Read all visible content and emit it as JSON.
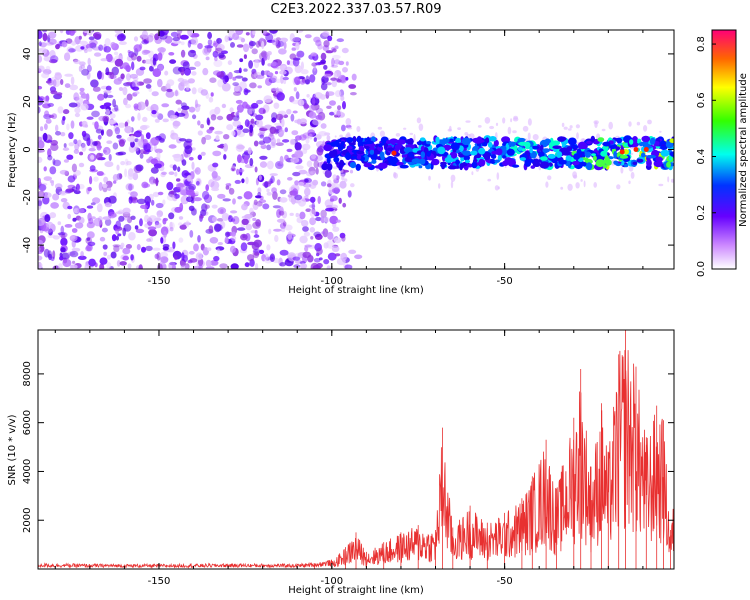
{
  "title": "C2E3.2022.337.03.57.R09",
  "chart_data": [
    {
      "type": "heatmap",
      "xlabel": "Height of straight line (km)",
      "ylabel": "Frequency (Hz)",
      "xlim": [
        -185,
        -1
      ],
      "ylim": [
        -50,
        50
      ],
      "xticks": [
        -150,
        -100,
        -50
      ],
      "yticks": [
        -40,
        -20,
        0,
        20,
        40
      ],
      "colorbar": {
        "label": "Normalized spectral amplitude",
        "range": [
          0,
          0.85
        ],
        "ticks": [
          "0.0",
          "0.2",
          "0.4",
          "0.6",
          "0.8"
        ]
      },
      "description_values": {
        "noise_region_x": [
          -185,
          -100
        ],
        "signal_band_center_hz": -1.5,
        "signal_band_halfwidth_hz": 6,
        "signal_peak_amplitude": 0.82
      }
    },
    {
      "type": "line",
      "xlabel": "Height of straight line (km)",
      "ylabel": "SNR (10 * v/v)",
      "xlim": [
        -185,
        -1
      ],
      "ylim": [
        0,
        9800
      ],
      "xticks": [
        -150,
        -100,
        -50
      ],
      "yticks": [
        2000,
        4000,
        6000,
        8000
      ],
      "series": [
        {
          "color": "#e83030",
          "points": [
            [
              -185,
              180
            ],
            [
              -170,
              160
            ],
            [
              -150,
              150
            ],
            [
              -130,
              170
            ],
            [
              -110,
              160
            ],
            [
              -105,
              200
            ],
            [
              -100,
              300
            ],
            [
              -96,
              900
            ],
            [
              -93,
              1500
            ],
            [
              -90,
              700
            ],
            [
              -85,
              1100
            ],
            [
              -80,
              1500
            ],
            [
              -75,
              1800
            ],
            [
              -70,
              1600
            ],
            [
              -68,
              5800
            ],
            [
              -65,
              1700
            ],
            [
              -60,
              2600
            ],
            [
              -55,
              1900
            ],
            [
              -50,
              2300
            ],
            [
              -45,
              2900
            ],
            [
              -42,
              3800
            ],
            [
              -38,
              5300
            ],
            [
              -35,
              3300
            ],
            [
              -30,
              6200
            ],
            [
              -28,
              8200
            ],
            [
              -25,
              4200
            ],
            [
              -22,
              6800
            ],
            [
              -20,
              4800
            ],
            [
              -17,
              8800
            ],
            [
              -15,
              9800
            ],
            [
              -12,
              8300
            ],
            [
              -9,
              5400
            ],
            [
              -6,
              6700
            ],
            [
              -4,
              6100
            ],
            [
              -2,
              1600
            ],
            [
              -1,
              2900
            ]
          ]
        }
      ]
    }
  ]
}
